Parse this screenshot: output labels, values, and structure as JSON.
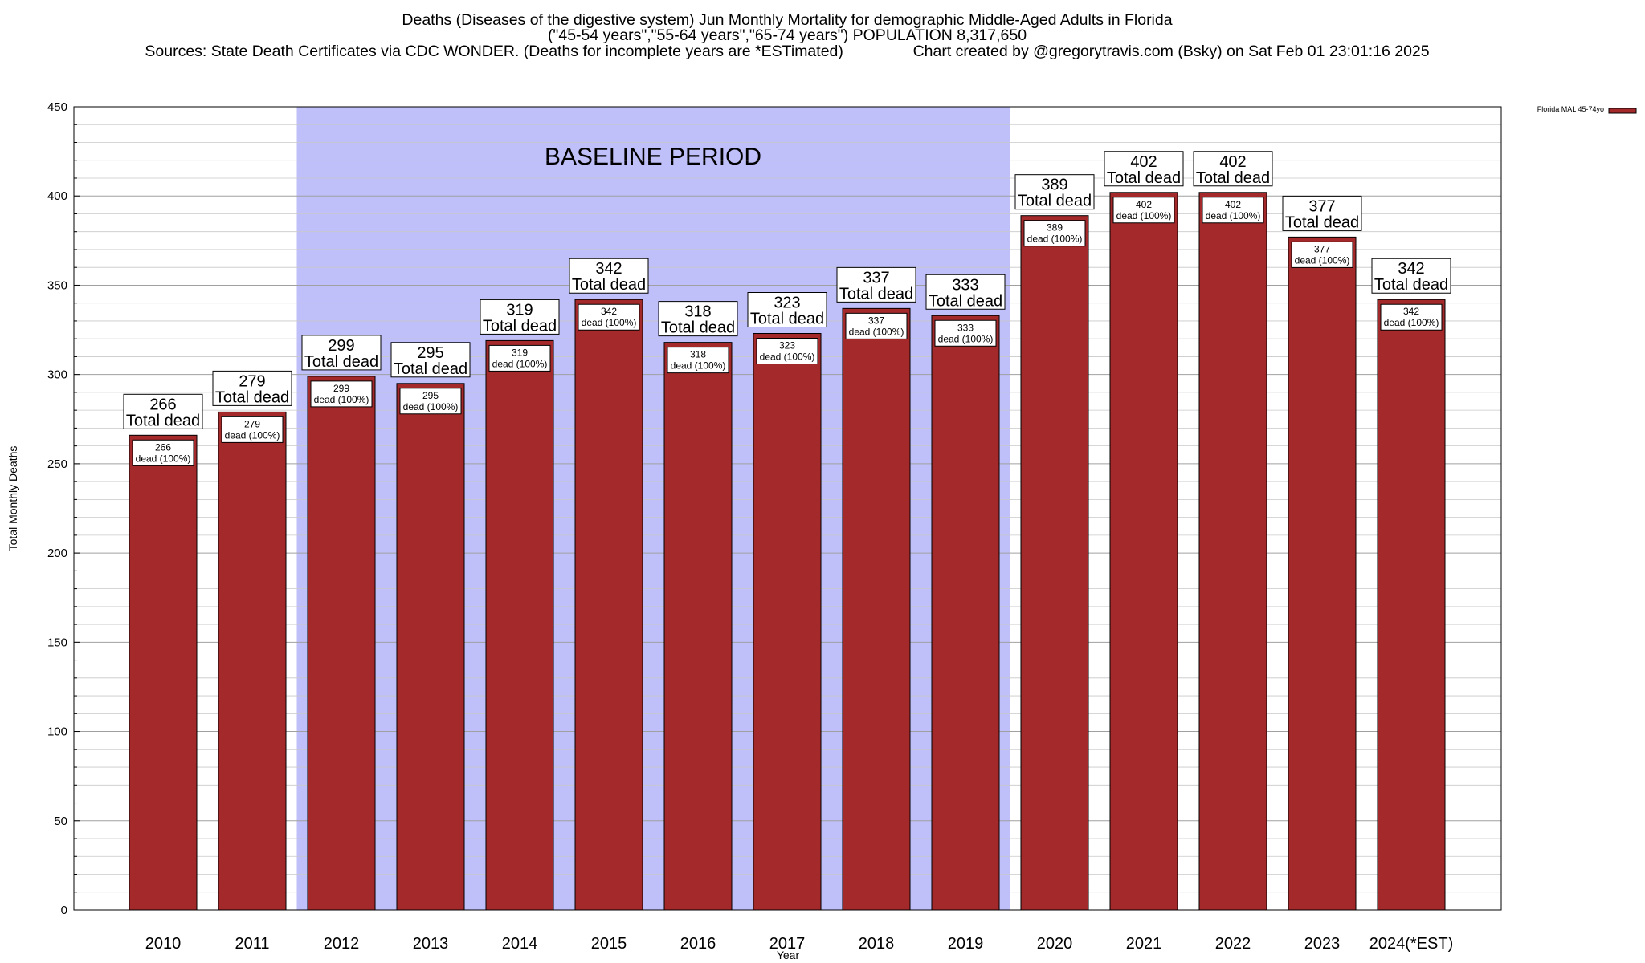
{
  "chart_data": {
    "type": "bar",
    "title_lines": [
      "Deaths (Diseases of the digestive system) Jun Monthly Mortality for demographic Middle-Aged Adults in Florida",
      "(\"45-54 years\",\"55-64 years\",\"65-74 years\") POPULATION 8,317,650",
      "Sources: State Death Certificates via CDC WONDER. (Deaths for incomplete years are *ESTimated)                Chart created by @gregorytravis.com (Bsky) on Sat Feb 01 23:01:16 2025"
    ],
    "xlabel": "Year",
    "ylabel": "Total Monthly Deaths",
    "ylim": [
      0,
      450
    ],
    "y_ticks": [
      0,
      50,
      100,
      150,
      200,
      250,
      300,
      350,
      400,
      450
    ],
    "y_minor_step": 10,
    "grid": true,
    "categories": [
      "2010",
      "2011",
      "2012",
      "2013",
      "2014",
      "2015",
      "2016",
      "2017",
      "2018",
      "2019",
      "2020",
      "2021",
      "2022",
      "2023",
      "2024(*EST)"
    ],
    "series": [
      {
        "name": "Florida MAL 45-74yo",
        "color": "#a3292a",
        "values": [
          266,
          279,
          299,
          295,
          319,
          342,
          318,
          323,
          337,
          333,
          389,
          402,
          402,
          377,
          342
        ]
      }
    ],
    "value_box_suffix": "Total dead",
    "inner_box_suffix": "dead (100%)",
    "baseline": {
      "label": "BASELINE PERIOD",
      "start": "2012",
      "end": "2019",
      "color": "#bfbffa"
    },
    "legend_position": "top-right"
  }
}
